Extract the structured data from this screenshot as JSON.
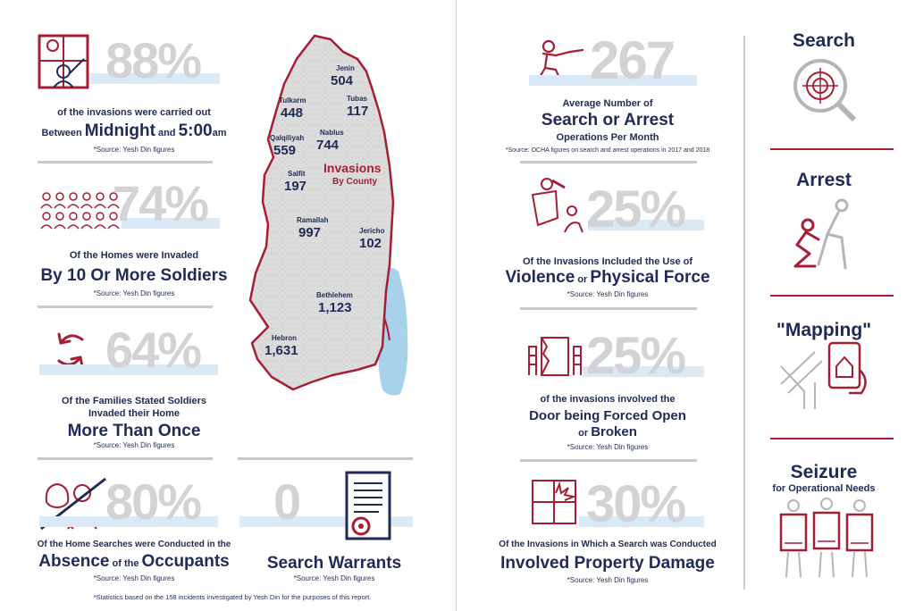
{
  "left": {
    "stat1": {
      "value": "88%",
      "line1": "of the invasions were carried out",
      "line2_a": "Between ",
      "line2_b": "Midnight",
      "line2_c": " and ",
      "line2_d": "5:00",
      "line2_e": "am",
      "source": "*Source: Yesh Din figures"
    },
    "stat2": {
      "value": "74%",
      "line1": "Of the Homes were Invaded",
      "line2": "By 10 Or More Soldiers",
      "source": "*Source: Yesh Din figures"
    },
    "stat3": {
      "value": "64%",
      "line1": "Of the Families Stated Soldiers",
      "line2": "Invaded their Home",
      "line3": "More Than Once",
      "source": "*Source: Yesh Din figures"
    },
    "stat4": {
      "value": "80%",
      "line1": "Of the Home Searches were Conducted in the",
      "line2_a": "Absence",
      "line2_b": " of the ",
      "line2_c": "Occupants",
      "source": "*Source: Yesh Din figures"
    },
    "stat5": {
      "value": "0",
      "line1": "Search Warrants",
      "source": "*Source: Yesh Din figures"
    },
    "footnote": "*Statistics based on the 158 incidents investigated by Yesh Din for the purposes of this report.",
    "map": {
      "title_a": "Invasions",
      "title_b": "By County",
      "counties": [
        {
          "name": "Jenin",
          "value": "504"
        },
        {
          "name": "Tulkarm",
          "value": "448"
        },
        {
          "name": "Tubas",
          "value": "117"
        },
        {
          "name": "Qalqiliyah",
          "value": "559"
        },
        {
          "name": "Nablus",
          "value": "744"
        },
        {
          "name": "Salfit",
          "value": "197"
        },
        {
          "name": "Ramallah",
          "value": "997"
        },
        {
          "name": "Jericho",
          "value": "102"
        },
        {
          "name": "Bethlehem",
          "value": "1,123"
        },
        {
          "name": "Hebron",
          "value": "1,631"
        }
      ]
    }
  },
  "right": {
    "stat1": {
      "value": "267",
      "line1": "Average Number of",
      "line2": "Search or Arrest",
      "line3": "Operations Per Month",
      "source": "*Source: OCHA figures on search and arrest operations in 2017 and 2018"
    },
    "stat2": {
      "value": "25%",
      "line1": "Of the Invasions Included the Use of",
      "line2_a": "Violence",
      "line2_b": " or ",
      "line2_c": "Physical Force",
      "source": "*Source: Yesh Din figures"
    },
    "stat3": {
      "value": "25%",
      "line1": "of the invasions involved the",
      "line2": "Door being Forced Open",
      "line3_a": "or ",
      "line3_b": "Broken",
      "source": "*Source: Yesh Din figures"
    },
    "stat4": {
      "value": "30%",
      "line1": "Of the Invasions in Which a Search was Conducted",
      "line2": "Involved Property Damage",
      "source": "*Source: Yesh Din figures"
    },
    "side": [
      {
        "title": "Search",
        "subtitle": ""
      },
      {
        "title": "Arrest",
        "subtitle": ""
      },
      {
        "title": "\"Mapping\"",
        "subtitle": ""
      },
      {
        "title": "Seizure",
        "subtitle": "for Operational Needs"
      }
    ]
  },
  "colors": {
    "navy": "#1f2b56",
    "red": "#a61e34",
    "grey": "#d3d3d6",
    "lightblue": "#d9e9f6",
    "sea": "#a8d2ec"
  }
}
